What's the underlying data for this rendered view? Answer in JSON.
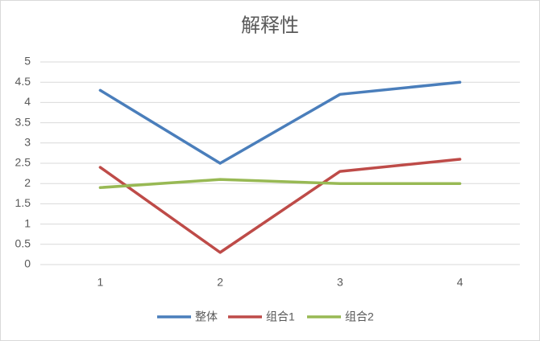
{
  "chart_data": {
    "type": "line",
    "title": "解释性",
    "categories": [
      "1",
      "2",
      "3",
      "4"
    ],
    "series": [
      {
        "name": "整体",
        "color": "#4a7ebb",
        "values": [
          4.3,
          2.5,
          4.2,
          4.5
        ]
      },
      {
        "name": "组合1",
        "color": "#be4b48",
        "values": [
          2.4,
          0.3,
          2.3,
          2.6
        ]
      },
      {
        "name": "组合2",
        "color": "#98b954",
        "values": [
          1.9,
          2.1,
          2.0,
          2.0
        ]
      }
    ],
    "ylim": [
      0,
      5
    ],
    "yticks": [
      0,
      0.5,
      1,
      1.5,
      2,
      2.5,
      3,
      3.5,
      4,
      4.5,
      5
    ],
    "grid": true,
    "legend": "bottom"
  }
}
